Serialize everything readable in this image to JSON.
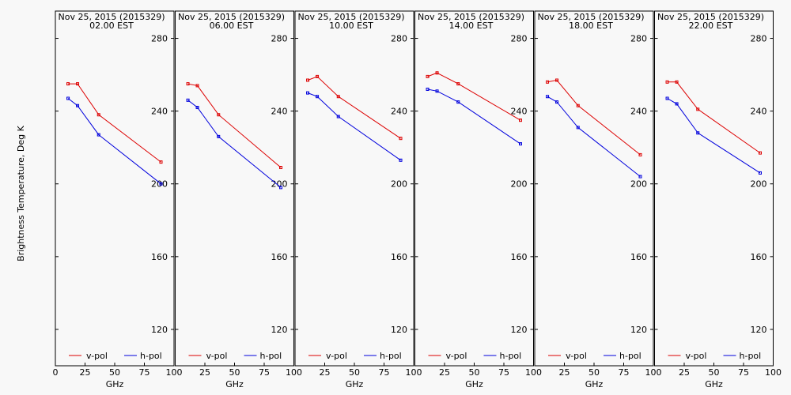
{
  "chart_data": {
    "type": "line",
    "ylabel": "Brightness Temperature, Deg K",
    "xlabel": "GHz",
    "ylim": [
      100,
      295
    ],
    "xlim": [
      0,
      100
    ],
    "yticks": [
      120,
      160,
      200,
      240,
      280
    ],
    "xticks": [
      0,
      25,
      50,
      75,
      100
    ],
    "x": [
      10.7,
      18.7,
      36.5,
      89.0
    ],
    "series_colors": {
      "v-pol": "#dd0000",
      "h-pol": "#0000dd"
    },
    "legend": {
      "v_label": "v-pol",
      "h_label": "h-pol"
    },
    "panels": [
      {
        "title": "Nov 25, 2015 (2015329)",
        "time": "02.00 EST",
        "series": [
          {
            "name": "v-pol",
            "values": [
              255,
              255,
              238,
              212
            ]
          },
          {
            "name": "h-pol",
            "values": [
              247,
              243,
              227,
              200
            ]
          }
        ]
      },
      {
        "title": "Nov 25, 2015 (2015329)",
        "time": "06.00 EST",
        "series": [
          {
            "name": "v-pol",
            "values": [
              255,
              254,
              238,
              209
            ]
          },
          {
            "name": "h-pol",
            "values": [
              246,
              242,
              226,
              198
            ]
          }
        ]
      },
      {
        "title": "Nov 25, 2015 (2015329)",
        "time": "10.00 EST",
        "series": [
          {
            "name": "v-pol",
            "values": [
              257,
              259,
              248,
              225
            ]
          },
          {
            "name": "h-pol",
            "values": [
              250,
              248,
              237,
              213
            ]
          }
        ]
      },
      {
        "title": "Nov 25, 2015 (2015329)",
        "time": "14.00 EST",
        "series": [
          {
            "name": "v-pol",
            "values": [
              259,
              261,
              255,
              235
            ]
          },
          {
            "name": "h-pol",
            "values": [
              252,
              251,
              245,
              222
            ]
          }
        ]
      },
      {
        "title": "Nov 25, 2015 (2015329)",
        "time": "18.00 EST",
        "series": [
          {
            "name": "v-pol",
            "values": [
              256,
              257,
              243,
              216
            ]
          },
          {
            "name": "h-pol",
            "values": [
              248,
              245,
              231,
              204
            ]
          }
        ]
      },
      {
        "title": "Nov 25, 2015 (2015329)",
        "time": "22.00 EST",
        "series": [
          {
            "name": "v-pol",
            "values": [
              256,
              256,
              241,
              217
            ]
          },
          {
            "name": "h-pol",
            "values": [
              247,
              244,
              228,
              206
            ]
          }
        ]
      }
    ]
  }
}
